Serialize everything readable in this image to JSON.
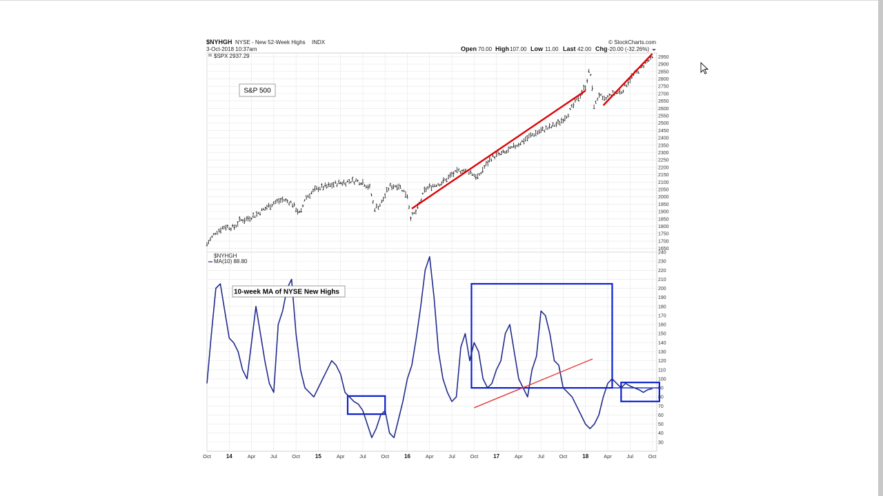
{
  "header": {
    "symbol": "$NYHGH",
    "description": "NYSE - New 52-Week Highs",
    "exchange": "INDX",
    "date": "3-Oct-2018 10:37am",
    "source": "© StockCharts.com",
    "open_label": "Open",
    "open_value": "70.00",
    "high_label": "High",
    "high_value": "107.00",
    "low_label": "Low",
    "low_value": "11.00",
    "last_label": "Last",
    "last_value": "42.00",
    "chg_label": "Chg",
    "chg_value": "-20.00 (-32.26%)",
    "overlay_legend": "$SPX 2937.29"
  },
  "chart_data": [
    {
      "type": "line",
      "panel": "upper",
      "annotation": "S&P 500",
      "legend": "$SPX 2937.29",
      "ylim": [
        1625,
        2975
      ],
      "yticks": [
        1650,
        1700,
        1750,
        1800,
        1850,
        1900,
        1950,
        2000,
        2050,
        2100,
        2150,
        2200,
        2250,
        2300,
        2350,
        2400,
        2450,
        2500,
        2550,
        2600,
        2650,
        2700,
        2750,
        2800,
        2850,
        2900,
        2950
      ],
      "x": [
        2013.75,
        2013.85,
        2013.95,
        2014.05,
        2014.12,
        2014.2,
        2014.3,
        2014.4,
        2014.5,
        2014.6,
        2014.7,
        2014.8,
        2014.85,
        2014.95,
        2015.0,
        2015.1,
        2015.2,
        2015.3,
        2015.4,
        2015.5,
        2015.58,
        2015.63,
        2015.7,
        2015.8,
        2015.9,
        2016.0,
        2016.04,
        2016.1,
        2016.2,
        2016.3,
        2016.4,
        2016.5,
        2016.6,
        2016.7,
        2016.8,
        2016.85,
        2016.95,
        2017.1,
        2017.2,
        2017.3,
        2017.4,
        2017.5,
        2017.6,
        2017.7,
        2017.8,
        2017.9,
        2018.0,
        2018.05,
        2018.1,
        2018.15,
        2018.2,
        2018.3,
        2018.4,
        2018.5,
        2018.6,
        2018.7,
        2018.75
      ],
      "values": [
        1680,
        1760,
        1800,
        1790,
        1840,
        1850,
        1880,
        1920,
        1960,
        1980,
        1960,
        1880,
        1990,
        2040,
        2060,
        2070,
        2090,
        2100,
        2110,
        2100,
        2060,
        1920,
        1950,
        2070,
        2080,
        2010,
        1860,
        1900,
        2050,
        2080,
        2100,
        2150,
        2180,
        2170,
        2130,
        2190,
        2270,
        2300,
        2340,
        2380,
        2420,
        2450,
        2470,
        2500,
        2560,
        2650,
        2750,
        2870,
        2600,
        2700,
        2650,
        2700,
        2710,
        2800,
        2860,
        2920,
        2937
      ],
      "trendlines": [
        {
          "from": [
            2016.05,
            1920
          ],
          "to": [
            2018.0,
            2720
          ]
        },
        {
          "from": [
            2018.2,
            2620
          ],
          "to": [
            2018.75,
            2970
          ]
        }
      ]
    },
    {
      "type": "line",
      "panel": "lower",
      "annotation": "10-week MA of NYSE New Highs",
      "legend_symbol": "$NYHGH",
      "legend_ma": "MA(10) 88.80",
      "ylim": [
        20,
        240
      ],
      "yticks": [
        30,
        40,
        50,
        60,
        70,
        80,
        90,
        100,
        110,
        120,
        130,
        140,
        150,
        160,
        170,
        180,
        190,
        200,
        210,
        220,
        230,
        240
      ],
      "x": [
        2013.75,
        2013.8,
        2013.85,
        2013.9,
        2013.95,
        2014.0,
        2014.05,
        2014.1,
        2014.15,
        2014.2,
        2014.25,
        2014.3,
        2014.35,
        2014.4,
        2014.45,
        2014.5,
        2014.55,
        2014.6,
        2014.65,
        2014.7,
        2014.75,
        2014.8,
        2014.85,
        2014.9,
        2014.95,
        2015.0,
        2015.05,
        2015.1,
        2015.15,
        2015.2,
        2015.25,
        2015.3,
        2015.35,
        2015.4,
        2015.45,
        2015.5,
        2015.55,
        2015.6,
        2015.65,
        2015.7,
        2015.75,
        2015.8,
        2015.85,
        2015.9,
        2015.95,
        2016.0,
        2016.05,
        2016.1,
        2016.15,
        2016.2,
        2016.25,
        2016.3,
        2016.35,
        2016.4,
        2016.45,
        2016.5,
        2016.55,
        2016.6,
        2016.65,
        2016.7,
        2016.75,
        2016.8,
        2016.85,
        2016.9,
        2016.95,
        2017.0,
        2017.05,
        2017.1,
        2017.15,
        2017.2,
        2017.25,
        2017.3,
        2017.35,
        2017.4,
        2017.45,
        2017.5,
        2017.55,
        2017.6,
        2017.65,
        2017.7,
        2017.75,
        2017.8,
        2017.85,
        2017.9,
        2017.95,
        2018.0,
        2018.05,
        2018.1,
        2018.15,
        2018.2,
        2018.25,
        2018.3,
        2018.35,
        2018.4,
        2018.45,
        2018.5,
        2018.55,
        2018.6,
        2018.65,
        2018.7,
        2018.75
      ],
      "values": [
        95,
        150,
        200,
        205,
        175,
        145,
        140,
        130,
        110,
        100,
        140,
        180,
        150,
        120,
        95,
        85,
        160,
        175,
        200,
        210,
        150,
        110,
        90,
        85,
        80,
        90,
        100,
        110,
        120,
        115,
        105,
        85,
        80,
        75,
        72,
        65,
        50,
        35,
        45,
        60,
        65,
        40,
        35,
        55,
        75,
        100,
        115,
        145,
        180,
        220,
        235,
        190,
        130,
        100,
        85,
        75,
        80,
        135,
        150,
        120,
        140,
        130,
        100,
        90,
        95,
        110,
        120,
        150,
        160,
        130,
        100,
        90,
        80,
        110,
        125,
        175,
        170,
        150,
        120,
        115,
        90,
        85,
        80,
        70,
        60,
        50,
        45,
        50,
        60,
        80,
        95,
        100,
        95,
        90,
        95,
        92,
        90,
        88,
        85,
        88,
        89
      ],
      "trendlines": [
        {
          "from": [
            2016.75,
            68
          ],
          "to": [
            2018.08,
            122
          ]
        }
      ],
      "boxes": [
        {
          "x": [
            2015.33,
            2015.75
          ],
          "y": [
            61,
            81
          ]
        },
        {
          "x": [
            2016.72,
            2018.3
          ],
          "y": [
            90,
            205
          ]
        },
        {
          "x": [
            2018.4,
            2018.83
          ],
          "y": [
            75,
            96
          ]
        }
      ],
      "reference_line": 90
    }
  ],
  "x_axis": {
    "range": [
      2013.75,
      2018.8
    ],
    "ticks": [
      {
        "x": 2013.75,
        "label": "Oct",
        "bold": false
      },
      {
        "x": 2014.0,
        "label": "14",
        "bold": true
      },
      {
        "x": 2014.25,
        "label": "Apr",
        "bold": false
      },
      {
        "x": 2014.5,
        "label": "Jul",
        "bold": false
      },
      {
        "x": 2014.75,
        "label": "Oct",
        "bold": false
      },
      {
        "x": 2015.0,
        "label": "15",
        "bold": true
      },
      {
        "x": 2015.25,
        "label": "Apr",
        "bold": false
      },
      {
        "x": 2015.5,
        "label": "Jul",
        "bold": false
      },
      {
        "x": 2015.75,
        "label": "Oct",
        "bold": false
      },
      {
        "x": 2016.0,
        "label": "16",
        "bold": true
      },
      {
        "x": 2016.25,
        "label": "Apr",
        "bold": false
      },
      {
        "x": 2016.5,
        "label": "Jul",
        "bold": false
      },
      {
        "x": 2016.75,
        "label": "Oct",
        "bold": false
      },
      {
        "x": 2017.0,
        "label": "17",
        "bold": true
      },
      {
        "x": 2017.25,
        "label": "Apr",
        "bold": false
      },
      {
        "x": 2017.5,
        "label": "Jul",
        "bold": false
      },
      {
        "x": 2017.75,
        "label": "Oct",
        "bold": false
      },
      {
        "x": 2018.0,
        "label": "18",
        "bold": true
      },
      {
        "x": 2018.25,
        "label": "Apr",
        "bold": false
      },
      {
        "x": 2018.5,
        "label": "Jul",
        "bold": false
      },
      {
        "x": 2018.75,
        "label": "Oct",
        "bold": false
      }
    ]
  },
  "colors": {
    "price": "#111111",
    "ma_line": "#1f2a8a",
    "trendline": "#dd0000",
    "box": "#0a1ecf",
    "grid": "#e6e6e6"
  }
}
